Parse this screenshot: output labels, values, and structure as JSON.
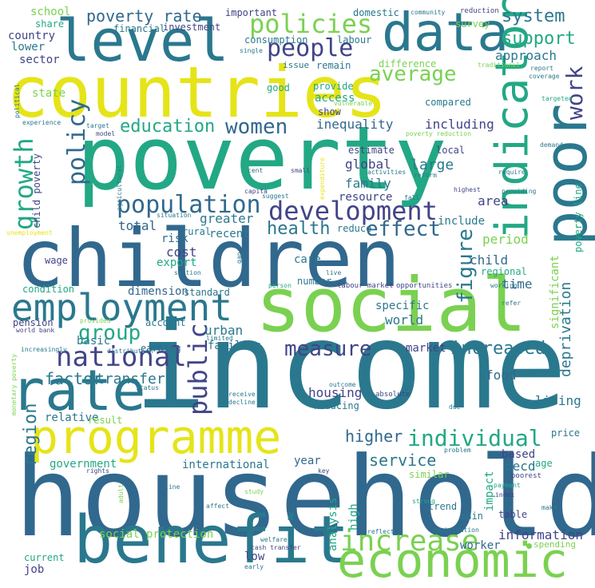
{
  "palette": {
    "yellow": "#e5e419",
    "lime": "#7ad151",
    "green": "#22a884",
    "teal": "#2a788e",
    "blue": "#31688e",
    "indigo": "#414487",
    "purple": "#440154"
  },
  "words": [
    {
      "text": "household",
      "color": "#31688e"
    },
    {
      "text": "income",
      "color": "#2a788e"
    },
    {
      "text": "poverty",
      "color": "#22a884"
    },
    {
      "text": "countries",
      "color": "#e5e419"
    },
    {
      "text": "children",
      "color": "#31688e"
    },
    {
      "text": "social",
      "color": "#7ad151"
    },
    {
      "text": "benefit",
      "color": "#2a788e"
    },
    {
      "text": "programme",
      "color": "#e5e419"
    },
    {
      "text": "economic",
      "color": "#7ad151"
    },
    {
      "text": "level",
      "color": "#2a788e"
    },
    {
      "text": "data",
      "color": "#2a788e"
    },
    {
      "text": "poor",
      "color": "#2a788e"
    },
    {
      "text": "employment",
      "color": "#2a788e"
    },
    {
      "text": "rate",
      "color": "#2a788e"
    },
    {
      "text": "indicator",
      "color": "#22a884"
    },
    {
      "text": "development",
      "color": "#414487"
    },
    {
      "text": "population",
      "color": "#31688e"
    },
    {
      "text": "policies",
      "color": "#7ad151"
    },
    {
      "text": "people",
      "color": "#414487"
    },
    {
      "text": "increase",
      "color": "#7ad151"
    },
    {
      "text": "individual",
      "color": "#22a884"
    },
    {
      "text": "national",
      "color": "#414487"
    },
    {
      "text": "measure",
      "color": "#414487"
    },
    {
      "text": "growth",
      "color": "#22a884"
    },
    {
      "text": "policy",
      "color": "#31688e"
    },
    {
      "text": "public",
      "color": "#414487"
    },
    {
      "text": "women",
      "color": "#31688e"
    },
    {
      "text": "group",
      "color": "#22a884"
    },
    {
      "text": "health",
      "color": "#2a788e"
    },
    {
      "text": "effect",
      "color": "#31688e"
    },
    {
      "text": "average",
      "color": "#7ad151"
    },
    {
      "text": "figure",
      "color": "#2a788e"
    },
    {
      "text": "work",
      "color": "#414487"
    },
    {
      "text": "system",
      "color": "#2a788e"
    },
    {
      "text": "support",
      "color": "#22a884"
    },
    {
      "text": "poverty rate",
      "color": "#31688e"
    },
    {
      "text": "education",
      "color": "#22a884"
    },
    {
      "text": "increased",
      "color": "#2a788e"
    },
    {
      "text": "service",
      "color": "#2a788e"
    },
    {
      "text": "higher",
      "color": "#31688e"
    },
    {
      "text": "region",
      "color": "#2a788e"
    },
    {
      "text": "factor",
      "color": "#2a788e"
    },
    {
      "text": "transfer",
      "color": "#2a788e"
    },
    {
      "text": "deprivation",
      "color": "#2a788e"
    },
    {
      "text": "approach",
      "color": "#2a788e"
    },
    {
      "text": "including",
      "color": "#414487"
    },
    {
      "text": "inequality",
      "color": "#31688e"
    },
    {
      "text": "global",
      "color": "#414487"
    },
    {
      "text": "large",
      "color": "#2a788e"
    },
    {
      "text": "family",
      "color": "#2a788e"
    },
    {
      "text": "resource",
      "color": "#414487"
    },
    {
      "text": "area",
      "color": "#414487"
    },
    {
      "text": "include",
      "color": "#2a788e"
    },
    {
      "text": "period",
      "color": "#7ad151"
    },
    {
      "text": "child",
      "color": "#31688e"
    },
    {
      "text": "regional",
      "color": "#22a884"
    },
    {
      "text": "time",
      "color": "#31688e"
    },
    {
      "text": "significant",
      "color": "#7ad151"
    },
    {
      "text": "poverty line",
      "color": "#22a884"
    },
    {
      "text": "greater",
      "color": "#2a788e"
    },
    {
      "text": "total",
      "color": "#31688e"
    },
    {
      "text": "cost",
      "color": "#414487"
    },
    {
      "text": "risk",
      "color": "#31688e"
    },
    {
      "text": "export",
      "color": "#22a884"
    },
    {
      "text": "rural",
      "color": "#2a788e"
    },
    {
      "text": "recent",
      "color": "#2a788e"
    },
    {
      "text": "care",
      "color": "#2a788e"
    },
    {
      "text": "dimension",
      "color": "#31688e"
    },
    {
      "text": "standard",
      "color": "#2a788e"
    },
    {
      "text": "basic",
      "color": "#2a788e"
    },
    {
      "text": "account",
      "color": "#2a788e"
    },
    {
      "text": "urban",
      "color": "#2a788e"
    },
    {
      "text": "world",
      "color": "#2a788e"
    },
    {
      "text": "specific",
      "color": "#2a788e"
    },
    {
      "text": "market",
      "color": "#414487"
    },
    {
      "text": "families",
      "color": "#2a788e"
    },
    {
      "text": "earning",
      "color": "#31688e"
    },
    {
      "text": "food",
      "color": "#31688e"
    },
    {
      "text": "housing",
      "color": "#414487"
    },
    {
      "text": "living",
      "color": "#2a788e"
    },
    {
      "text": "reducing",
      "color": "#2a788e"
    },
    {
      "text": "relative",
      "color": "#2a788e"
    },
    {
      "text": "result",
      "color": "#7ad151"
    },
    {
      "text": "government",
      "color": "#22a884"
    },
    {
      "text": "international",
      "color": "#2a788e"
    },
    {
      "text": "year",
      "color": "#31688e"
    },
    {
      "text": "based",
      "color": "#414487"
    },
    {
      "text": "oecd",
      "color": "#2a788e"
    },
    {
      "text": "age",
      "color": "#22a884"
    },
    {
      "text": "price",
      "color": "#2a788e"
    },
    {
      "text": "similar",
      "color": "#7ad151"
    },
    {
      "text": "impact",
      "color": "#22a884"
    },
    {
      "text": "main",
      "color": "#2a788e"
    },
    {
      "text": "table",
      "color": "#414487"
    },
    {
      "text": "analysis",
      "color": "#22a884"
    },
    {
      "text": "high",
      "color": "#22a884"
    },
    {
      "text": "trend",
      "color": "#2a788e"
    },
    {
      "text": "information",
      "color": "#414487"
    },
    {
      "text": "worker",
      "color": "#31688e"
    },
    {
      "text": "low",
      "color": "#414487"
    },
    {
      "text": "social protection",
      "color": "#7ad151"
    },
    {
      "text": "current",
      "color": "#22a884"
    },
    {
      "text": "job",
      "color": "#414487"
    },
    {
      "text": "school",
      "color": "#7ad151"
    },
    {
      "text": "share",
      "color": "#22a884"
    },
    {
      "text": "country",
      "color": "#414487"
    },
    {
      "text": "lower",
      "color": "#2a788e"
    },
    {
      "text": "sector",
      "color": "#414487"
    },
    {
      "text": "state",
      "color": "#7ad151"
    },
    {
      "text": "important",
      "color": "#414487"
    },
    {
      "text": "financial",
      "color": "#2a788e"
    },
    {
      "text": "investment",
      "color": "#414487"
    },
    {
      "text": "domestic",
      "color": "#2a788e"
    },
    {
      "text": "consumption",
      "color": "#2a788e"
    },
    {
      "text": "labour",
      "color": "#2a788e"
    },
    {
      "text": "community",
      "color": "#2a788e"
    },
    {
      "text": "reduction",
      "color": "#414487"
    },
    {
      "text": "survey",
      "color": "#7ad151"
    },
    {
      "text": "single",
      "color": "#2a788e"
    },
    {
      "text": "issue",
      "color": "#2a788e"
    },
    {
      "text": "remain",
      "color": "#2a788e"
    },
    {
      "text": "difference",
      "color": "#7ad151"
    },
    {
      "text": "traditional",
      "color": "#7ad151"
    },
    {
      "text": "report",
      "color": "#2a788e"
    },
    {
      "text": "coverage",
      "color": "#2a788e"
    },
    {
      "text": "targeted",
      "color": "#22a884"
    },
    {
      "text": "good",
      "color": "#22a884"
    },
    {
      "text": "provide",
      "color": "#22a884"
    },
    {
      "text": "access",
      "color": "#22a884"
    },
    {
      "text": "vulnerable",
      "color": "#7ad151"
    },
    {
      "text": "compared",
      "color": "#2a788e"
    },
    {
      "text": "show",
      "color": "#414487"
    },
    {
      "text": "political",
      "color": "#2a788e"
    },
    {
      "text": "experience",
      "color": "#2a788e"
    },
    {
      "text": "target",
      "color": "#2a788e"
    },
    {
      "text": "model",
      "color": "#414487"
    },
    {
      "text": "poverty reduction",
      "color": "#7ad151"
    },
    {
      "text": "estimate",
      "color": "#414487"
    },
    {
      "text": "local",
      "color": "#414487"
    },
    {
      "text": "demand",
      "color": "#2a788e"
    },
    {
      "text": "cent",
      "color": "#2a788e"
    },
    {
      "text": "small",
      "color": "#414487"
    },
    {
      "text": "activities",
      "color": "#2a788e"
    },
    {
      "text": "reform",
      "color": "#2a788e"
    },
    {
      "text": "require",
      "color": "#2a788e"
    },
    {
      "text": "capita",
      "color": "#414487"
    },
    {
      "text": "suggest",
      "color": "#2a788e"
    },
    {
      "text": "highest",
      "color": "#414487"
    },
    {
      "text": "providing",
      "color": "#2a788e"
    },
    {
      "text": "situation",
      "color": "#2a788e"
    },
    {
      "text": "fall",
      "color": "#2a788e"
    },
    {
      "text": "agricultural",
      "color": "#2a788e"
    },
    {
      "text": "expenditure",
      "color": "#e5e419"
    },
    {
      "text": "unemployment",
      "color": "#e5e419"
    },
    {
      "text": "child poverty",
      "color": "#414487"
    },
    {
      "text": "reduce",
      "color": "#2a788e"
    },
    {
      "text": "wage",
      "color": "#414487"
    },
    {
      "text": "section",
      "color": "#2a788e"
    },
    {
      "text": "gap",
      "color": "#2a788e"
    },
    {
      "text": "condition",
      "color": "#22a884"
    },
    {
      "text": "person",
      "color": "#22a884"
    },
    {
      "text": "live",
      "color": "#2a788e"
    },
    {
      "text": "labour market",
      "color": "#414487"
    },
    {
      "text": "opportunities",
      "color": "#414487"
    },
    {
      "text": "working",
      "color": "#2a788e"
    },
    {
      "text": "refer",
      "color": "#2a788e"
    },
    {
      "text": "number",
      "color": "#2a788e"
    },
    {
      "text": "pension",
      "color": "#414487"
    },
    {
      "text": "world bank",
      "color": "#414487"
    },
    {
      "text": "provided",
      "color": "#7ad151"
    },
    {
      "text": "limited",
      "color": "#2a788e"
    },
    {
      "text": "increasingly",
      "color": "#2a788e"
    },
    {
      "text": "distribution",
      "color": "#2a788e"
    },
    {
      "text": "status",
      "color": "#2a788e"
    },
    {
      "text": "outcome",
      "color": "#2a788e"
    },
    {
      "text": "tend",
      "color": "#2a788e"
    },
    {
      "text": "monetary poverty",
      "color": "#7ad151"
    },
    {
      "text": "receive",
      "color": "#2a788e"
    },
    {
      "text": "decline",
      "color": "#2a788e"
    },
    {
      "text": "absolute",
      "color": "#414487"
    },
    {
      "text": "due",
      "color": "#2a788e"
    },
    {
      "text": "rights",
      "color": "#414487"
    },
    {
      "text": "problem",
      "color": "#2a788e"
    },
    {
      "text": "key",
      "color": "#414487"
    },
    {
      "text": "poorest",
      "color": "#414487"
    },
    {
      "text": "line",
      "color": "#2a788e"
    },
    {
      "text": "adult",
      "color": "#7ad151"
    },
    {
      "text": "study",
      "color": "#7ad151"
    },
    {
      "text": "affect",
      "color": "#2a788e"
    },
    {
      "text": "strong",
      "color": "#22a884"
    },
    {
      "text": "index",
      "color": "#414487"
    },
    {
      "text": "payment",
      "color": "#22a884"
    },
    {
      "text": "make",
      "color": "#2a788e"
    },
    {
      "text": "reflect",
      "color": "#2a788e"
    },
    {
      "text": "contribution",
      "color": "#2a788e"
    },
    {
      "text": "spending",
      "color": "#7ad151"
    },
    {
      "text": "welfare",
      "color": "#2a788e"
    },
    {
      "text": "cash transfer",
      "color": "#414487"
    },
    {
      "text": "early",
      "color": "#2a788e"
    }
  ]
}
